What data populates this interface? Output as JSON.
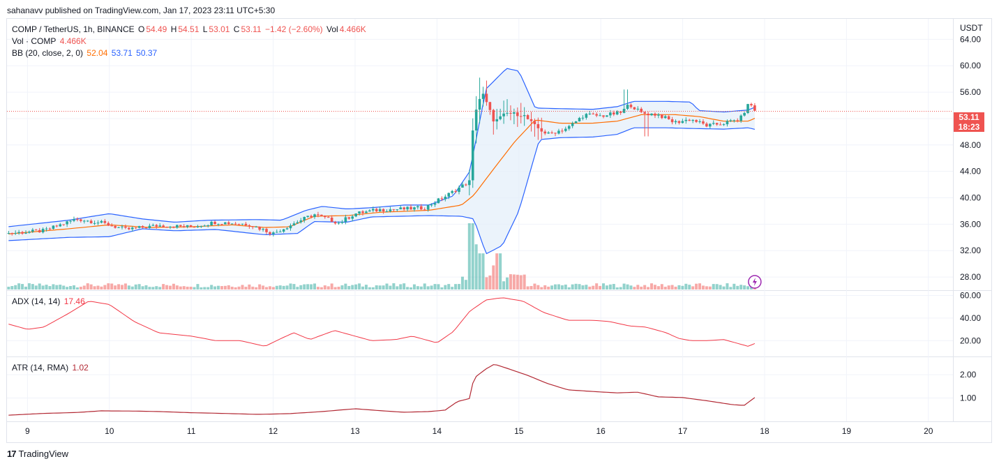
{
  "publish_line": "sahanavv published on TradingView.com, Jan 17, 2023 23:11 UTC+5:30",
  "footer": {
    "logo_text": "TradingView"
  },
  "legend": {
    "symbol": "COMP / TetherUS, 1h, BINANCE",
    "o_label": "O",
    "o_value": "54.49",
    "h_label": "H",
    "h_value": "54.51",
    "l_label": "L",
    "l_value": "53.01",
    "c_label": "C",
    "c_value": "53.11",
    "change": "−1.42 (−2.60%)",
    "vol_label": "Vol",
    "vol_value": "4.466K",
    "vol_line_label": "Vol · COMP",
    "vol_line_value": "4.466K",
    "bb_label": "BB (20, close, 2, 0)",
    "bb_basis": "52.04",
    "bb_upper": "53.71",
    "bb_lower": "50.37",
    "adx_label": "ADX (14, 14)",
    "adx_value": "17.46",
    "atr_label": "ATR (14, RMA)",
    "atr_value": "1.02"
  },
  "price_tag": {
    "price": "53.11",
    "countdown": "18:23"
  },
  "colors": {
    "up": "#26a69a",
    "down": "#ef5350",
    "bb_band": "#2962ff",
    "bb_basis": "#ff6d00",
    "bb_fill": "#e3eefa",
    "adx": "#f23645",
    "atr": "#b22833",
    "grid": "#f0f3fa",
    "text": "#131722"
  },
  "chart_data": [
    {
      "type": "candlestick",
      "panel": "price",
      "y_axis_label": "USDT",
      "ylim": [
        26,
        67
      ],
      "y_ticks": [
        "28.00",
        "32.00",
        "36.00",
        "40.00",
        "44.00",
        "48.00",
        "52.00",
        "56.00",
        "60.00",
        "64.00"
      ],
      "x_ticks": [
        "9",
        "10",
        "11",
        "12",
        "13",
        "14",
        "15",
        "16",
        "17",
        "18",
        "19",
        "20"
      ],
      "x_range_days": [
        8.75,
        20.3
      ],
      "close_keypoints": [
        [
          8.75,
          34.6
        ],
        [
          9.2,
          35.0
        ],
        [
          9.6,
          36.8
        ],
        [
          9.9,
          36.2
        ],
        [
          10.2,
          35.2
        ],
        [
          10.6,
          35.8
        ],
        [
          11.0,
          35.6
        ],
        [
          11.3,
          36.3
        ],
        [
          11.7,
          36.0
        ],
        [
          12.0,
          34.6
        ],
        [
          12.3,
          36.4
        ],
        [
          12.5,
          37.5
        ],
        [
          12.8,
          36.2
        ],
        [
          13.0,
          37.6
        ],
        [
          13.3,
          38.2
        ],
        [
          13.6,
          38.3
        ],
        [
          13.85,
          38.5
        ],
        [
          14.1,
          40.2
        ],
        [
          14.4,
          42.5
        ],
        [
          14.45,
          52.5
        ],
        [
          14.55,
          56.0
        ],
        [
          14.7,
          51.5
        ],
        [
          14.85,
          52.8
        ],
        [
          15.05,
          52.6
        ],
        [
          15.2,
          50.8
        ],
        [
          15.35,
          49.6
        ],
        [
          15.6,
          50.6
        ],
        [
          15.8,
          52.6
        ],
        [
          16.0,
          52.4
        ],
        [
          16.25,
          52.9
        ],
        [
          16.35,
          54.2
        ],
        [
          16.5,
          52.8
        ],
        [
          16.7,
          52.6
        ],
        [
          16.9,
          51.4
        ],
        [
          17.1,
          51.9
        ],
        [
          17.3,
          50.9
        ],
        [
          17.5,
          51.3
        ],
        [
          17.7,
          51.9
        ],
        [
          17.82,
          54.5
        ],
        [
          17.88,
          53.11
        ]
      ],
      "bb_upper_keypoints": [
        [
          8.75,
          35.6
        ],
        [
          9.5,
          36.6
        ],
        [
          10.0,
          37.6
        ],
        [
          10.4,
          36.8
        ],
        [
          10.8,
          36.3
        ],
        [
          11.2,
          36.6
        ],
        [
          11.8,
          36.7
        ],
        [
          12.1,
          36.6
        ],
        [
          12.4,
          38.1
        ],
        [
          12.6,
          38.7
        ],
        [
          12.9,
          38.3
        ],
        [
          13.2,
          38.5
        ],
        [
          13.6,
          38.9
        ],
        [
          13.9,
          38.9
        ],
        [
          14.2,
          40.3
        ],
        [
          14.4,
          44.0
        ],
        [
          14.6,
          56.5
        ],
        [
          14.85,
          59.6
        ],
        [
          15.0,
          59.2
        ],
        [
          15.2,
          53.6
        ],
        [
          15.5,
          53.5
        ],
        [
          15.9,
          53.4
        ],
        [
          16.2,
          53.8
        ],
        [
          16.4,
          54.6
        ],
        [
          16.8,
          54.6
        ],
        [
          17.1,
          54.5
        ],
        [
          17.2,
          53.2
        ],
        [
          17.5,
          53.0
        ],
        [
          17.8,
          53.3
        ],
        [
          17.88,
          53.71
        ]
      ],
      "bb_basis_keypoints": [
        [
          8.75,
          34.5
        ],
        [
          9.5,
          35.3
        ],
        [
          10.0,
          35.9
        ],
        [
          10.5,
          35.5
        ],
        [
          11.0,
          35.6
        ],
        [
          11.5,
          35.9
        ],
        [
          11.9,
          35.5
        ],
        [
          12.2,
          35.6
        ],
        [
          12.5,
          37.2
        ],
        [
          12.9,
          37.3
        ],
        [
          13.3,
          37.8
        ],
        [
          13.9,
          38.1
        ],
        [
          14.3,
          38.9
        ],
        [
          14.45,
          40.4
        ],
        [
          14.7,
          44.5
        ],
        [
          14.95,
          48.5
        ],
        [
          15.2,
          51.8
        ],
        [
          15.5,
          51.3
        ],
        [
          15.9,
          51.3
        ],
        [
          16.2,
          51.6
        ],
        [
          16.5,
          52.6
        ],
        [
          16.9,
          52.6
        ],
        [
          17.2,
          52.3
        ],
        [
          17.5,
          51.6
        ],
        [
          17.8,
          51.6
        ],
        [
          17.88,
          52.04
        ]
      ],
      "bb_lower_keypoints": [
        [
          8.75,
          33.5
        ],
        [
          9.5,
          34.0
        ],
        [
          10.0,
          34.1
        ],
        [
          10.4,
          35.3
        ],
        [
          10.8,
          35.0
        ],
        [
          11.3,
          35.2
        ],
        [
          11.9,
          34.4
        ],
        [
          12.3,
          34.6
        ],
        [
          12.5,
          36.4
        ],
        [
          12.9,
          36.3
        ],
        [
          13.2,
          37.1
        ],
        [
          13.9,
          37.3
        ],
        [
          14.3,
          37.2
        ],
        [
          14.45,
          36.8
        ],
        [
          14.6,
          31.5
        ],
        [
          14.8,
          32.8
        ],
        [
          15.0,
          38.0
        ],
        [
          15.25,
          48.8
        ],
        [
          15.5,
          49.1
        ],
        [
          15.9,
          49.2
        ],
        [
          16.2,
          49.6
        ],
        [
          16.4,
          50.6
        ],
        [
          16.8,
          50.6
        ],
        [
          17.1,
          50.5
        ],
        [
          17.5,
          50.4
        ],
        [
          17.8,
          50.6
        ],
        [
          17.88,
          50.37
        ]
      ]
    },
    {
      "type": "bar",
      "panel": "volume",
      "series_name": "Vol · COMP",
      "spikes": [
        [
          14.42,
          22
        ],
        [
          14.47,
          15
        ],
        [
          14.55,
          12
        ],
        [
          14.7,
          8
        ],
        [
          14.75,
          12
        ]
      ]
    },
    {
      "type": "line",
      "panel": "ADX",
      "y_ticks": [
        "20.00",
        "40.00",
        "60.00"
      ],
      "ylim": [
        6,
        64
      ],
      "keypoints": [
        [
          8.75,
          35
        ],
        [
          9.0,
          30
        ],
        [
          9.2,
          32
        ],
        [
          9.5,
          44
        ],
        [
          9.75,
          55
        ],
        [
          10.0,
          52
        ],
        [
          10.3,
          37
        ],
        [
          10.6,
          27
        ],
        [
          11.0,
          24
        ],
        [
          11.3,
          20
        ],
        [
          11.6,
          20
        ],
        [
          11.9,
          15
        ],
        [
          12.1,
          22
        ],
        [
          12.25,
          27
        ],
        [
          12.45,
          21
        ],
        [
          12.75,
          29
        ],
        [
          12.95,
          25
        ],
        [
          13.2,
          20
        ],
        [
          13.5,
          21
        ],
        [
          13.7,
          24
        ],
        [
          13.9,
          20
        ],
        [
          14.0,
          18
        ],
        [
          14.2,
          28
        ],
        [
          14.4,
          46
        ],
        [
          14.6,
          56
        ],
        [
          14.8,
          58
        ],
        [
          15.05,
          55
        ],
        [
          15.3,
          45
        ],
        [
          15.6,
          38
        ],
        [
          15.9,
          38
        ],
        [
          16.1,
          37
        ],
        [
          16.35,
          33
        ],
        [
          16.55,
          32
        ],
        [
          16.8,
          27
        ],
        [
          16.95,
          22
        ],
        [
          17.1,
          20
        ],
        [
          17.3,
          20
        ],
        [
          17.5,
          21
        ],
        [
          17.7,
          17
        ],
        [
          17.8,
          15
        ],
        [
          17.88,
          17.46
        ]
      ]
    },
    {
      "type": "line",
      "panel": "ATR",
      "y_ticks": [
        "1.00",
        "2.00"
      ],
      "ylim": [
        0,
        2.75
      ],
      "keypoints": [
        [
          8.75,
          0.26
        ],
        [
          9.2,
          0.34
        ],
        [
          9.6,
          0.38
        ],
        [
          9.9,
          0.45
        ],
        [
          10.3,
          0.44
        ],
        [
          10.6,
          0.42
        ],
        [
          11.0,
          0.37
        ],
        [
          11.4,
          0.34
        ],
        [
          11.8,
          0.3
        ],
        [
          12.2,
          0.33
        ],
        [
          12.6,
          0.42
        ],
        [
          12.8,
          0.48
        ],
        [
          13.0,
          0.54
        ],
        [
          13.3,
          0.46
        ],
        [
          13.6,
          0.39
        ],
        [
          13.9,
          0.42
        ],
        [
          14.1,
          0.48
        ],
        [
          14.25,
          0.85
        ],
        [
          14.4,
          0.98
        ],
        [
          14.45,
          1.85
        ],
        [
          14.6,
          2.25
        ],
        [
          14.7,
          2.45
        ],
        [
          14.85,
          2.28
        ],
        [
          15.1,
          1.98
        ],
        [
          15.35,
          1.62
        ],
        [
          15.6,
          1.35
        ],
        [
          15.9,
          1.28
        ],
        [
          16.2,
          1.22
        ],
        [
          16.45,
          1.25
        ],
        [
          16.7,
          1.05
        ],
        [
          17.0,
          1.02
        ],
        [
          17.3,
          0.88
        ],
        [
          17.6,
          0.72
        ],
        [
          17.75,
          0.68
        ],
        [
          17.88,
          1.02
        ]
      ]
    }
  ]
}
